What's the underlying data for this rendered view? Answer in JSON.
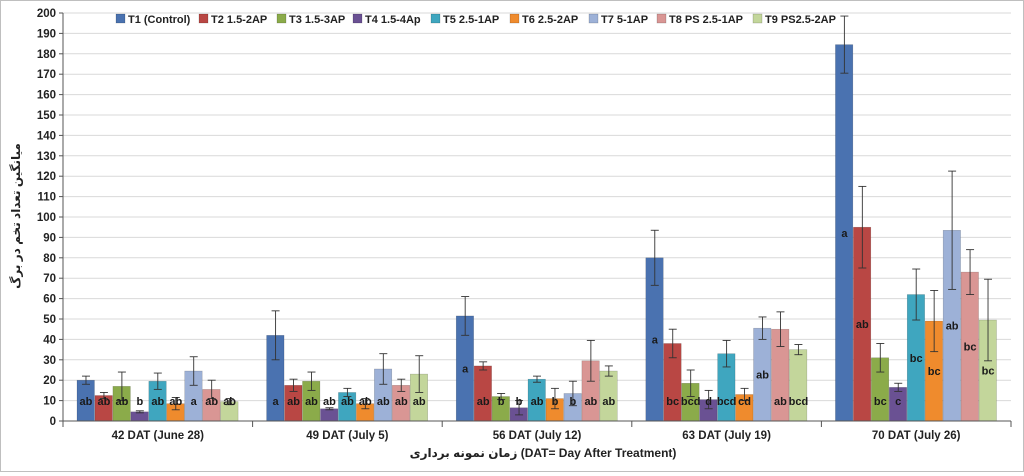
{
  "chart_data": {
    "type": "bar",
    "title": "",
    "xlabel": "زمان نمونه برداری (DAT= Day After Treatment)",
    "ylabel": "میانگین تعداد تخم در برگ",
    "ylim": [
      0,
      200
    ],
    "ytick_step": 10,
    "grid": true,
    "legend_position": "top",
    "categories": [
      "42 DAT (June 28)",
      "49 DAT (July 5)",
      "56 DAT (July 12)",
      "63 DAT (July 19)",
      "70 DAT (July 26)"
    ],
    "series": [
      {
        "name": "T1 (Control)",
        "color": "#4a72b0",
        "values": [
          20,
          42,
          51.5,
          80,
          184.5
        ],
        "errors": [
          2,
          12,
          9.5,
          13.5,
          14
        ],
        "letters": [
          "ab",
          "a",
          "a",
          "a",
          "a"
        ]
      },
      {
        "name": "T2 1.5-2AP",
        "color": "#b94744",
        "values": [
          12.5,
          17.5,
          27,
          38,
          95
        ],
        "errors": [
          1.5,
          3,
          2,
          7,
          20
        ],
        "letters": [
          "ab",
          "ab",
          "ab",
          "bc",
          "ab"
        ]
      },
      {
        "name": "T3 1.5-3AP",
        "color": "#8bab4a",
        "values": [
          17,
          19.5,
          12,
          18.5,
          31
        ],
        "errors": [
          7,
          4.5,
          1.5,
          6.5,
          7
        ],
        "letters": [
          "ab",
          "ab",
          "b",
          "bcd",
          "bc"
        ]
      },
      {
        "name": "T4 1.5-4Ap",
        "color": "#6a5193",
        "values": [
          4.5,
          6,
          6.5,
          10.5,
          16.5
        ],
        "errors": [
          0.5,
          0.5,
          3.5,
          4.5,
          2
        ],
        "letters": [
          "b",
          "ab",
          "b",
          "d",
          "c"
        ]
      },
      {
        "name": "T5 2.5-1AP",
        "color": "#3fa6bf",
        "values": [
          19.5,
          14,
          20.5,
          33,
          62
        ],
        "errors": [
          4,
          2,
          1.5,
          6.5,
          12.5
        ],
        "letters": [
          "ab",
          "ab",
          "ab",
          "bcd",
          "bc"
        ]
      },
      {
        "name": "T6 2.5-2AP",
        "color": "#ef8b2d",
        "values": [
          8.5,
          8.5,
          11,
          13,
          49
        ],
        "errors": [
          3,
          2.5,
          5,
          3,
          15
        ],
        "letters": [
          "ab",
          "ab",
          "b",
          "cd",
          "bc"
        ]
      },
      {
        "name": "T7 5-1AP",
        "color": "#9db1d7",
        "values": [
          24.5,
          25.5,
          13.5,
          45.5,
          93.5
        ],
        "errors": [
          7,
          7.5,
          6,
          5.5,
          29
        ],
        "letters": [
          "a",
          "ab",
          "b",
          "ab",
          "ab"
        ]
      },
      {
        "name": "T8 PS 2.5-1AP",
        "color": "#d99694",
        "values": [
          15.5,
          17.5,
          29.5,
          45,
          73
        ],
        "errors": [
          4.5,
          3,
          10,
          8.5,
          11
        ],
        "letters": [
          "ab",
          "ab",
          "ab",
          "ab",
          "bc"
        ]
      },
      {
        "name": "T9 PS2.5-2AP",
        "color": "#c3d69b",
        "values": [
          9.5,
          23,
          24.5,
          35,
          49.5
        ],
        "errors": [
          1.5,
          9,
          2.5,
          2.5,
          20
        ],
        "letters": [
          "ab",
          "ab",
          "ab",
          "bcd",
          "bc"
        ]
      }
    ]
  }
}
